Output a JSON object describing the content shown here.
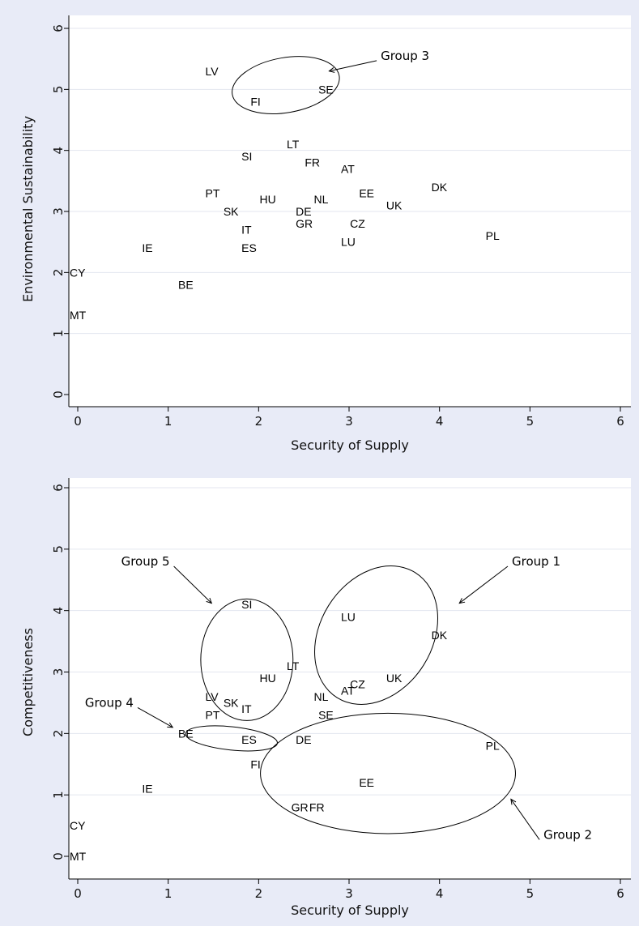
{
  "chart_data": [
    {
      "type": "scatter",
      "xlabel": "Security of Supply",
      "ylabel": "Environmental Sustainability",
      "xlim": [
        0,
        6
      ],
      "ylim": [
        0,
        6
      ],
      "xticks": [
        "0",
        "1",
        "2",
        "3",
        "4",
        "5",
        "6"
      ],
      "yticks": [
        "0",
        "1",
        "2",
        "3",
        "4",
        "5",
        "6"
      ],
      "grid": "horizontal",
      "points": [
        {
          "label": "LV",
          "x": 1.5,
          "y": 5.3
        },
        {
          "label": "FI",
          "x": 2.0,
          "y": 4.8
        },
        {
          "label": "SE",
          "x": 2.75,
          "y": 5.0
        },
        {
          "label": "LT",
          "x": 2.4,
          "y": 4.1
        },
        {
          "label": "SI",
          "x": 1.9,
          "y": 3.9
        },
        {
          "label": "FR",
          "x": 2.6,
          "y": 3.8
        },
        {
          "label": "AT",
          "x": 3.0,
          "y": 3.7
        },
        {
          "label": "DK",
          "x": 4.0,
          "y": 3.4
        },
        {
          "label": "PT",
          "x": 1.5,
          "y": 3.3
        },
        {
          "label": "EE",
          "x": 3.2,
          "y": 3.3
        },
        {
          "label": "HU",
          "x": 2.1,
          "y": 3.2
        },
        {
          "label": "NL",
          "x": 2.7,
          "y": 3.2
        },
        {
          "label": "UK",
          "x": 3.5,
          "y": 3.1
        },
        {
          "label": "SK",
          "x": 1.7,
          "y": 3.0
        },
        {
          "label": "DE",
          "x": 2.5,
          "y": 3.0
        },
        {
          "label": "GR",
          "x": 2.5,
          "y": 2.8
        },
        {
          "label": "CZ",
          "x": 3.1,
          "y": 2.8
        },
        {
          "label": "IT",
          "x": 1.9,
          "y": 2.7
        },
        {
          "label": "PL",
          "x": 4.6,
          "y": 2.6
        },
        {
          "label": "LU",
          "x": 3.0,
          "y": 2.5
        },
        {
          "label": "IE",
          "x": 0.8,
          "y": 2.4
        },
        {
          "label": "ES",
          "x": 1.9,
          "y": 2.4
        },
        {
          "label": "CY",
          "x": 0.0,
          "y": 2.0
        },
        {
          "label": "BE",
          "x": 1.2,
          "y": 1.8
        },
        {
          "label": "MT",
          "x": 0.0,
          "y": 1.3
        }
      ],
      "annotations": [
        {
          "label": "Group 3",
          "cx": 2.3,
          "cy": 5.07,
          "rx": 0.6,
          "ry": 0.45,
          "rot": -10,
          "text_x": 3.35,
          "text_y": 5.55,
          "arrow_x": 2.78,
          "arrow_y": 5.3
        }
      ]
    },
    {
      "type": "scatter",
      "xlabel": "Security of Supply",
      "ylabel": "Competitiveness",
      "xlim": [
        0,
        6
      ],
      "ylim": [
        0,
        6
      ],
      "xticks": [
        "0",
        "1",
        "2",
        "3",
        "4",
        "5",
        "6"
      ],
      "yticks": [
        "0",
        "1",
        "2",
        "3",
        "4",
        "5",
        "6"
      ],
      "grid": "horizontal",
      "points": [
        {
          "label": "SI",
          "x": 1.9,
          "y": 4.1
        },
        {
          "label": "LU",
          "x": 3.0,
          "y": 3.9
        },
        {
          "label": "DK",
          "x": 4.0,
          "y": 3.6
        },
        {
          "label": "LT",
          "x": 2.4,
          "y": 3.1
        },
        {
          "label": "HU",
          "x": 2.1,
          "y": 2.9
        },
        {
          "label": "UK",
          "x": 3.5,
          "y": 2.9
        },
        {
          "label": "CZ",
          "x": 3.1,
          "y": 2.8
        },
        {
          "label": "AT",
          "x": 3.0,
          "y": 2.7
        },
        {
          "label": "LV",
          "x": 1.5,
          "y": 2.6
        },
        {
          "label": "NL",
          "x": 2.7,
          "y": 2.6
        },
        {
          "label": "SK",
          "x": 1.7,
          "y": 2.5
        },
        {
          "label": "IT",
          "x": 1.9,
          "y": 2.4
        },
        {
          "label": "PT",
          "x": 1.5,
          "y": 2.3
        },
        {
          "label": "SE",
          "x": 2.75,
          "y": 2.3
        },
        {
          "label": "BE",
          "x": 1.2,
          "y": 2.0
        },
        {
          "label": "ES",
          "x": 1.9,
          "y": 1.9
        },
        {
          "label": "DE",
          "x": 2.5,
          "y": 1.9
        },
        {
          "label": "PL",
          "x": 4.6,
          "y": 1.8
        },
        {
          "label": "FI",
          "x": 2.0,
          "y": 1.5
        },
        {
          "label": "EE",
          "x": 3.2,
          "y": 1.2
        },
        {
          "label": "IE",
          "x": 0.8,
          "y": 1.1
        },
        {
          "label": "GR",
          "x": 2.45,
          "y": 0.8
        },
        {
          "label": "FR",
          "x": 2.65,
          "y": 0.8
        },
        {
          "label": "CY",
          "x": 0.0,
          "y": 0.5
        },
        {
          "label": "MT",
          "x": 0.0,
          "y": 0.0
        }
      ],
      "annotations": [
        {
          "label": "Group 5",
          "cx": 1.87,
          "cy": 3.2,
          "rx": 0.51,
          "ry": 0.99,
          "rot": 0,
          "text_x": 0.48,
          "text_y": 4.8,
          "arrow_x": 1.48,
          "arrow_y": 4.12
        },
        {
          "label": "Group 1",
          "cx": 3.3,
          "cy": 3.6,
          "rx": 0.62,
          "ry": 1.2,
          "rot": 32,
          "text_x": 4.8,
          "text_y": 4.8,
          "arrow_x": 4.22,
          "arrow_y": 4.12
        },
        {
          "label": "Group 4",
          "cx": 1.7,
          "cy": 1.92,
          "rx": 0.51,
          "ry": 0.19,
          "rot": 6,
          "text_x": 0.08,
          "text_y": 2.5,
          "arrow_x": 1.05,
          "arrow_y": 2.1
        },
        {
          "label": "Group 2",
          "cx": 3.43,
          "cy": 1.35,
          "rx": 1.41,
          "ry": 0.98,
          "rot": 0,
          "text_x": 5.15,
          "text_y": 0.35,
          "arrow_x": 4.79,
          "arrow_y": 0.93
        }
      ]
    }
  ]
}
